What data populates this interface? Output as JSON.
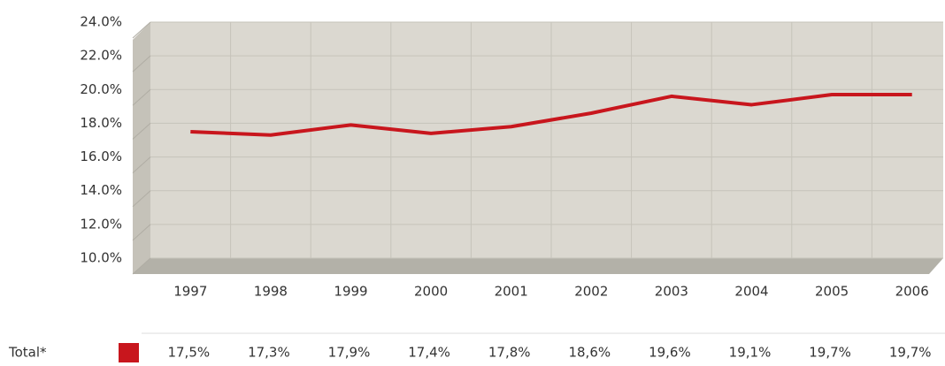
{
  "chart_data": {
    "type": "line",
    "categories": [
      "1997",
      "1998",
      "1999",
      "2000",
      "2001",
      "2002",
      "2003",
      "2004",
      "2005",
      "2006"
    ],
    "series": [
      {
        "name": "Total*",
        "color": "#c8161d",
        "values": [
          17.5,
          17.3,
          17.9,
          17.4,
          17.8,
          18.6,
          19.6,
          19.1,
          19.7,
          19.7
        ],
        "value_labels": [
          "17,5%",
          "17,3%",
          "17,9%",
          "17,4%",
          "17,8%",
          "18,6%",
          "19,6%",
          "19,1%",
          "19,7%",
          "19,7%"
        ]
      }
    ],
    "ylim": [
      10,
      24
    ],
    "yticks": [
      {
        "value": 10,
        "label": "10.0%"
      },
      {
        "value": 12,
        "label": "12.0%"
      },
      {
        "value": 14,
        "label": "14.0%"
      },
      {
        "value": 16,
        "label": "16.0%"
      },
      {
        "value": 18,
        "label": "18.0%"
      },
      {
        "value": 20,
        "label": "20.0%"
      },
      {
        "value": 22,
        "label": "22.0%"
      },
      {
        "value": 24,
        "label": "24.0%"
      }
    ],
    "grid": true
  }
}
